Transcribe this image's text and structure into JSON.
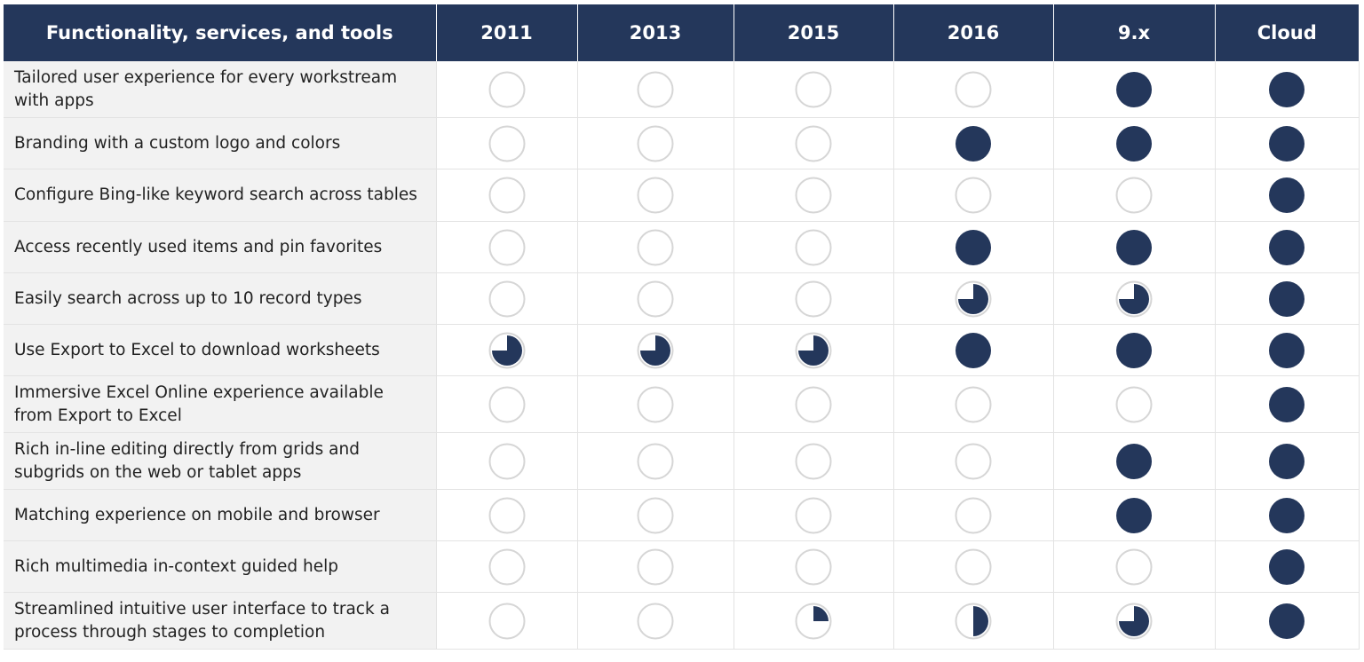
{
  "colors": {
    "header_bg": "#24375b",
    "fill": "#24375b",
    "empty_stroke": "#d6d6d6",
    "label_bg": "#f2f2f2"
  },
  "header": {
    "feature_col": "Functionality, services, and tools",
    "versions": [
      "2011",
      "2013",
      "2015",
      "2016",
      "9.x",
      "Cloud"
    ]
  },
  "rows": [
    {
      "label": "Tailored user experience for every workstream with apps",
      "levels": [
        0,
        0,
        0,
        0,
        1,
        1
      ]
    },
    {
      "label": "Branding with a custom logo and colors",
      "levels": [
        0,
        0,
        0,
        1,
        1,
        1
      ]
    },
    {
      "label": "Configure Bing-like keyword search across tables",
      "levels": [
        0,
        0,
        0,
        0,
        0,
        1
      ]
    },
    {
      "label": "Access recently used items and pin favorites",
      "levels": [
        0,
        0,
        0,
        1,
        1,
        1
      ]
    },
    {
      "label": "Easily search across up to 10 record types",
      "levels": [
        0,
        0,
        0,
        0.75,
        0.75,
        1
      ]
    },
    {
      "label": "Use Export to Excel to download worksheets",
      "levels": [
        0.75,
        0.75,
        0.75,
        1,
        1,
        1
      ]
    },
    {
      "label": "Immersive Excel Online experience available from Export to Excel",
      "levels": [
        0,
        0,
        0,
        0,
        0,
        1
      ]
    },
    {
      "label": "Rich in-line editing directly from grids and subgrids on the web or tablet apps",
      "levels": [
        0,
        0,
        0,
        0,
        1,
        1
      ]
    },
    {
      "label": "Matching experience on mobile and browser",
      "levels": [
        0,
        0,
        0,
        0,
        1,
        1
      ]
    },
    {
      "label": "Rich multimedia in-context guided help",
      "levels": [
        0,
        0,
        0,
        0,
        0,
        1
      ]
    },
    {
      "label": "Streamlined intuitive user interface to track a process through stages to completion",
      "levels": [
        0,
        0,
        0.25,
        0.5,
        0.75,
        1
      ]
    }
  ]
}
